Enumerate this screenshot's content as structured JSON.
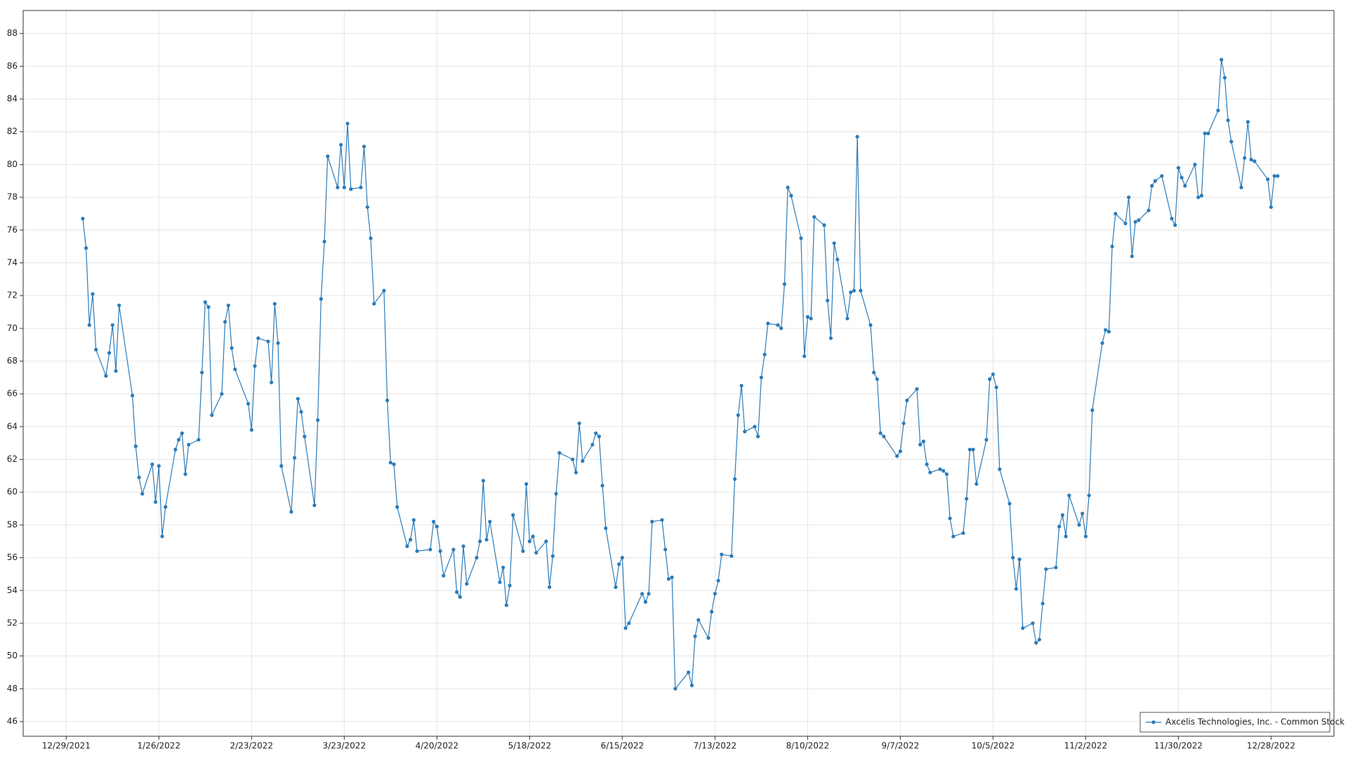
{
  "chart_data": {
    "type": "line",
    "x": [
      "1/3/2022",
      "1/4/2022",
      "1/5/2022",
      "1/6/2022",
      "1/7/2022",
      "1/10/2022",
      "1/11/2022",
      "1/12/2022",
      "1/13/2022",
      "1/14/2022",
      "1/18/2022",
      "1/19/2022",
      "1/20/2022",
      "1/21/2022",
      "1/24/2022",
      "1/25/2022",
      "1/26/2022",
      "1/27/2022",
      "1/28/2022",
      "1/31/2022",
      "2/1/2022",
      "2/2/2022",
      "2/3/2022",
      "2/4/2022",
      "2/7/2022",
      "2/8/2022",
      "2/9/2022",
      "2/10/2022",
      "2/11/2022",
      "2/14/2022",
      "2/15/2022",
      "2/16/2022",
      "2/17/2022",
      "2/18/2022",
      "2/22/2022",
      "2/23/2022",
      "2/24/2022",
      "2/25/2022",
      "2/28/2022",
      "3/1/2022",
      "3/2/2022",
      "3/3/2022",
      "3/4/2022",
      "3/7/2022",
      "3/8/2022",
      "3/9/2022",
      "3/10/2022",
      "3/11/2022",
      "3/14/2022",
      "3/15/2022",
      "3/16/2022",
      "3/17/2022",
      "3/18/2022",
      "3/21/2022",
      "3/22/2022",
      "3/23/2022",
      "3/24/2022",
      "3/25/2022",
      "3/28/2022",
      "3/29/2022",
      "3/30/2022",
      "3/31/2022",
      "4/1/2022",
      "4/4/2022",
      "4/5/2022",
      "4/6/2022",
      "4/7/2022",
      "4/8/2022",
      "4/11/2022",
      "4/12/2022",
      "4/13/2022",
      "4/14/2022",
      "4/18/2022",
      "4/19/2022",
      "4/20/2022",
      "4/21/2022",
      "4/22/2022",
      "4/25/2022",
      "4/26/2022",
      "4/27/2022",
      "4/28/2022",
      "4/29/2022",
      "5/2/2022",
      "5/3/2022",
      "5/4/2022",
      "5/5/2022",
      "5/6/2022",
      "5/9/2022",
      "5/10/2022",
      "5/11/2022",
      "5/12/2022",
      "5/13/2022",
      "5/16/2022",
      "5/17/2022",
      "5/18/2022",
      "5/19/2022",
      "5/20/2022",
      "5/23/2022",
      "5/24/2022",
      "5/25/2022",
      "5/26/2022",
      "5/27/2022",
      "5/31/2022",
      "6/1/2022",
      "6/2/2022",
      "6/3/2022",
      "6/6/2022",
      "6/7/2022",
      "6/8/2022",
      "6/9/2022",
      "6/10/2022",
      "6/13/2022",
      "6/14/2022",
      "6/15/2022",
      "6/16/2022",
      "6/17/2022",
      "6/21/2022",
      "6/22/2022",
      "6/23/2022",
      "6/24/2022",
      "6/27/2022",
      "6/28/2022",
      "6/29/2022",
      "6/30/2022",
      "7/1/2022",
      "7/5/2022",
      "7/6/2022",
      "7/7/2022",
      "7/8/2022",
      "7/11/2022",
      "7/12/2022",
      "7/13/2022",
      "7/14/2022",
      "7/15/2022",
      "7/18/2022",
      "7/19/2022",
      "7/20/2022",
      "7/21/2022",
      "7/22/2022",
      "7/25/2022",
      "7/26/2022",
      "7/27/2022",
      "7/28/2022",
      "7/29/2022",
      "8/1/2022",
      "8/2/2022",
      "8/3/2022",
      "8/4/2022",
      "8/5/2022",
      "8/8/2022",
      "8/9/2022",
      "8/10/2022",
      "8/11/2022",
      "8/12/2022",
      "8/15/2022",
      "8/16/2022",
      "8/17/2022",
      "8/18/2022",
      "8/19/2022",
      "8/22/2022",
      "8/23/2022",
      "8/24/2022",
      "8/25/2022",
      "8/26/2022",
      "8/29/2022",
      "8/30/2022",
      "8/31/2022",
      "9/1/2022",
      "9/2/2022",
      "9/6/2022",
      "9/7/2022",
      "9/8/2022",
      "9/9/2022",
      "9/12/2022",
      "9/13/2022",
      "9/14/2022",
      "9/15/2022",
      "9/16/2022",
      "9/19/2022",
      "9/20/2022",
      "9/21/2022",
      "9/22/2022",
      "9/23/2022",
      "9/26/2022",
      "9/27/2022",
      "9/28/2022",
      "9/29/2022",
      "9/30/2022",
      "10/3/2022",
      "10/4/2022",
      "10/5/2022",
      "10/6/2022",
      "10/7/2022",
      "10/10/2022",
      "10/11/2022",
      "10/12/2022",
      "10/13/2022",
      "10/14/2022",
      "10/17/2022",
      "10/18/2022",
      "10/19/2022",
      "10/20/2022",
      "10/21/2022",
      "10/24/2022",
      "10/25/2022",
      "10/26/2022",
      "10/27/2022",
      "10/28/2022",
      "10/31/2022",
      "11/1/2022",
      "11/2/2022",
      "11/3/2022",
      "11/4/2022",
      "11/7/2022",
      "11/8/2022",
      "11/9/2022",
      "11/10/2022",
      "11/11/2022",
      "11/14/2022",
      "11/15/2022",
      "11/16/2022",
      "11/17/2022",
      "11/18/2022",
      "11/21/2022",
      "11/22/2022",
      "11/23/2022",
      "11/25/2022",
      "11/28/2022",
      "11/29/2022",
      "11/30/2022",
      "12/1/2022",
      "12/2/2022",
      "12/5/2022",
      "12/6/2022",
      "12/7/2022",
      "12/8/2022",
      "12/9/2022",
      "12/12/2022",
      "12/13/2022",
      "12/14/2022",
      "12/15/2022",
      "12/16/2022",
      "12/19/2022",
      "12/20/2022",
      "12/21/2022",
      "12/22/2022",
      "12/23/2022",
      "12/27/2022",
      "12/28/2022",
      "12/29/2022",
      "12/30/2022"
    ],
    "series": [
      {
        "name": "Axcelis Technologies, Inc. - Common Stock",
        "color": "#2b7bb9",
        "values": [
          76.7,
          74.9,
          70.2,
          72.1,
          68.7,
          67.1,
          68.5,
          70.2,
          67.4,
          71.4,
          65.9,
          62.8,
          60.9,
          59.9,
          61.7,
          59.4,
          61.6,
          57.3,
          59.1,
          62.6,
          63.2,
          63.6,
          61.1,
          62.9,
          63.2,
          67.3,
          71.6,
          71.3,
          64.7,
          66.0,
          70.4,
          71.4,
          68.8,
          67.5,
          65.4,
          63.8,
          67.7,
          69.4,
          69.2,
          66.7,
          71.5,
          69.1,
          61.6,
          58.8,
          62.1,
          65.7,
          64.9,
          63.4,
          59.2,
          64.4,
          71.8,
          75.3,
          80.5,
          78.6,
          81.2,
          78.6,
          82.5,
          78.5,
          78.6,
          81.1,
          77.4,
          75.5,
          71.5,
          72.3,
          65.6,
          61.8,
          61.7,
          59.1,
          56.7,
          57.1,
          58.3,
          56.4,
          56.5,
          58.2,
          57.9,
          56.4,
          54.9,
          56.5,
          53.9,
          53.6,
          56.7,
          54.4,
          56.0,
          57.0,
          60.7,
          57.1,
          58.2,
          54.5,
          55.4,
          53.1,
          54.3,
          58.6,
          56.4,
          60.5,
          57.0,
          57.3,
          56.3,
          57.0,
          54.2,
          56.1,
          59.9,
          62.4,
          62.0,
          61.2,
          64.2,
          61.9,
          62.9,
          63.6,
          63.4,
          60.4,
          57.8,
          54.2,
          55.6,
          56.0,
          51.7,
          52.0,
          53.8,
          53.3,
          53.8,
          58.2,
          58.3,
          56.5,
          54.7,
          54.8,
          48.0,
          49.0,
          48.2,
          51.2,
          52.2,
          51.1,
          52.7,
          53.8,
          54.6,
          56.2,
          56.1,
          60.8,
          64.7,
          66.5,
          63.7,
          64.0,
          63.4,
          67.0,
          68.4,
          70.3,
          70.2,
          70.0,
          72.7,
          78.6,
          78.1,
          75.5,
          68.3,
          70.7,
          70.6,
          76.8,
          76.3,
          71.7,
          69.4,
          75.2,
          74.2,
          70.6,
          72.2,
          72.3,
          81.7,
          72.3,
          70.2,
          67.3,
          66.9,
          63.6,
          63.4,
          62.2,
          62.5,
          64.2,
          65.6,
          66.3,
          62.9,
          63.1,
          61.7,
          61.2,
          61.4,
          61.3,
          61.1,
          58.4,
          57.3,
          57.5,
          59.6,
          62.6,
          62.6,
          60.5,
          63.2,
          66.9,
          67.2,
          66.4,
          61.4,
          59.3,
          56.0,
          54.1,
          55.9,
          51.7,
          52.0,
          50.8,
          51.0,
          53.2,
          55.3,
          55.4,
          57.9,
          58.6,
          57.3,
          59.8,
          58.0,
          58.7,
          57.3,
          59.8,
          65.0,
          69.1,
          69.9,
          69.8,
          75.0,
          77.0,
          76.4,
          78.0,
          74.4,
          76.5,
          76.6,
          77.2,
          78.7,
          79.0,
          79.3,
          76.7,
          76.3,
          79.8,
          79.2,
          78.7,
          80.0,
          78.0,
          78.1,
          81.9,
          81.9,
          83.3,
          86.4,
          85.3,
          82.7,
          81.4,
          78.6,
          80.4,
          82.6,
          80.3,
          80.2,
          79.1,
          77.4,
          79.3,
          79.3
        ]
      }
    ],
    "xlim": [
      "12/16/2021",
      "1/16/2023"
    ],
    "xticks": [
      "12/29/2021",
      "1/26/2022",
      "2/23/2022",
      "3/23/2022",
      "4/20/2022",
      "5/18/2022",
      "6/15/2022",
      "7/13/2022",
      "8/10/2022",
      "9/7/2022",
      "10/5/2022",
      "11/2/2022",
      "11/30/2022",
      "12/28/2022"
    ],
    "ylim": [
      45.1,
      89.4
    ],
    "yticks": [
      46,
      48,
      50,
      52,
      54,
      56,
      58,
      60,
      62,
      64,
      66,
      68,
      70,
      72,
      74,
      76,
      78,
      80,
      82,
      84,
      86,
      88
    ],
    "grid": true,
    "legend": "lower right",
    "markers": true
  }
}
